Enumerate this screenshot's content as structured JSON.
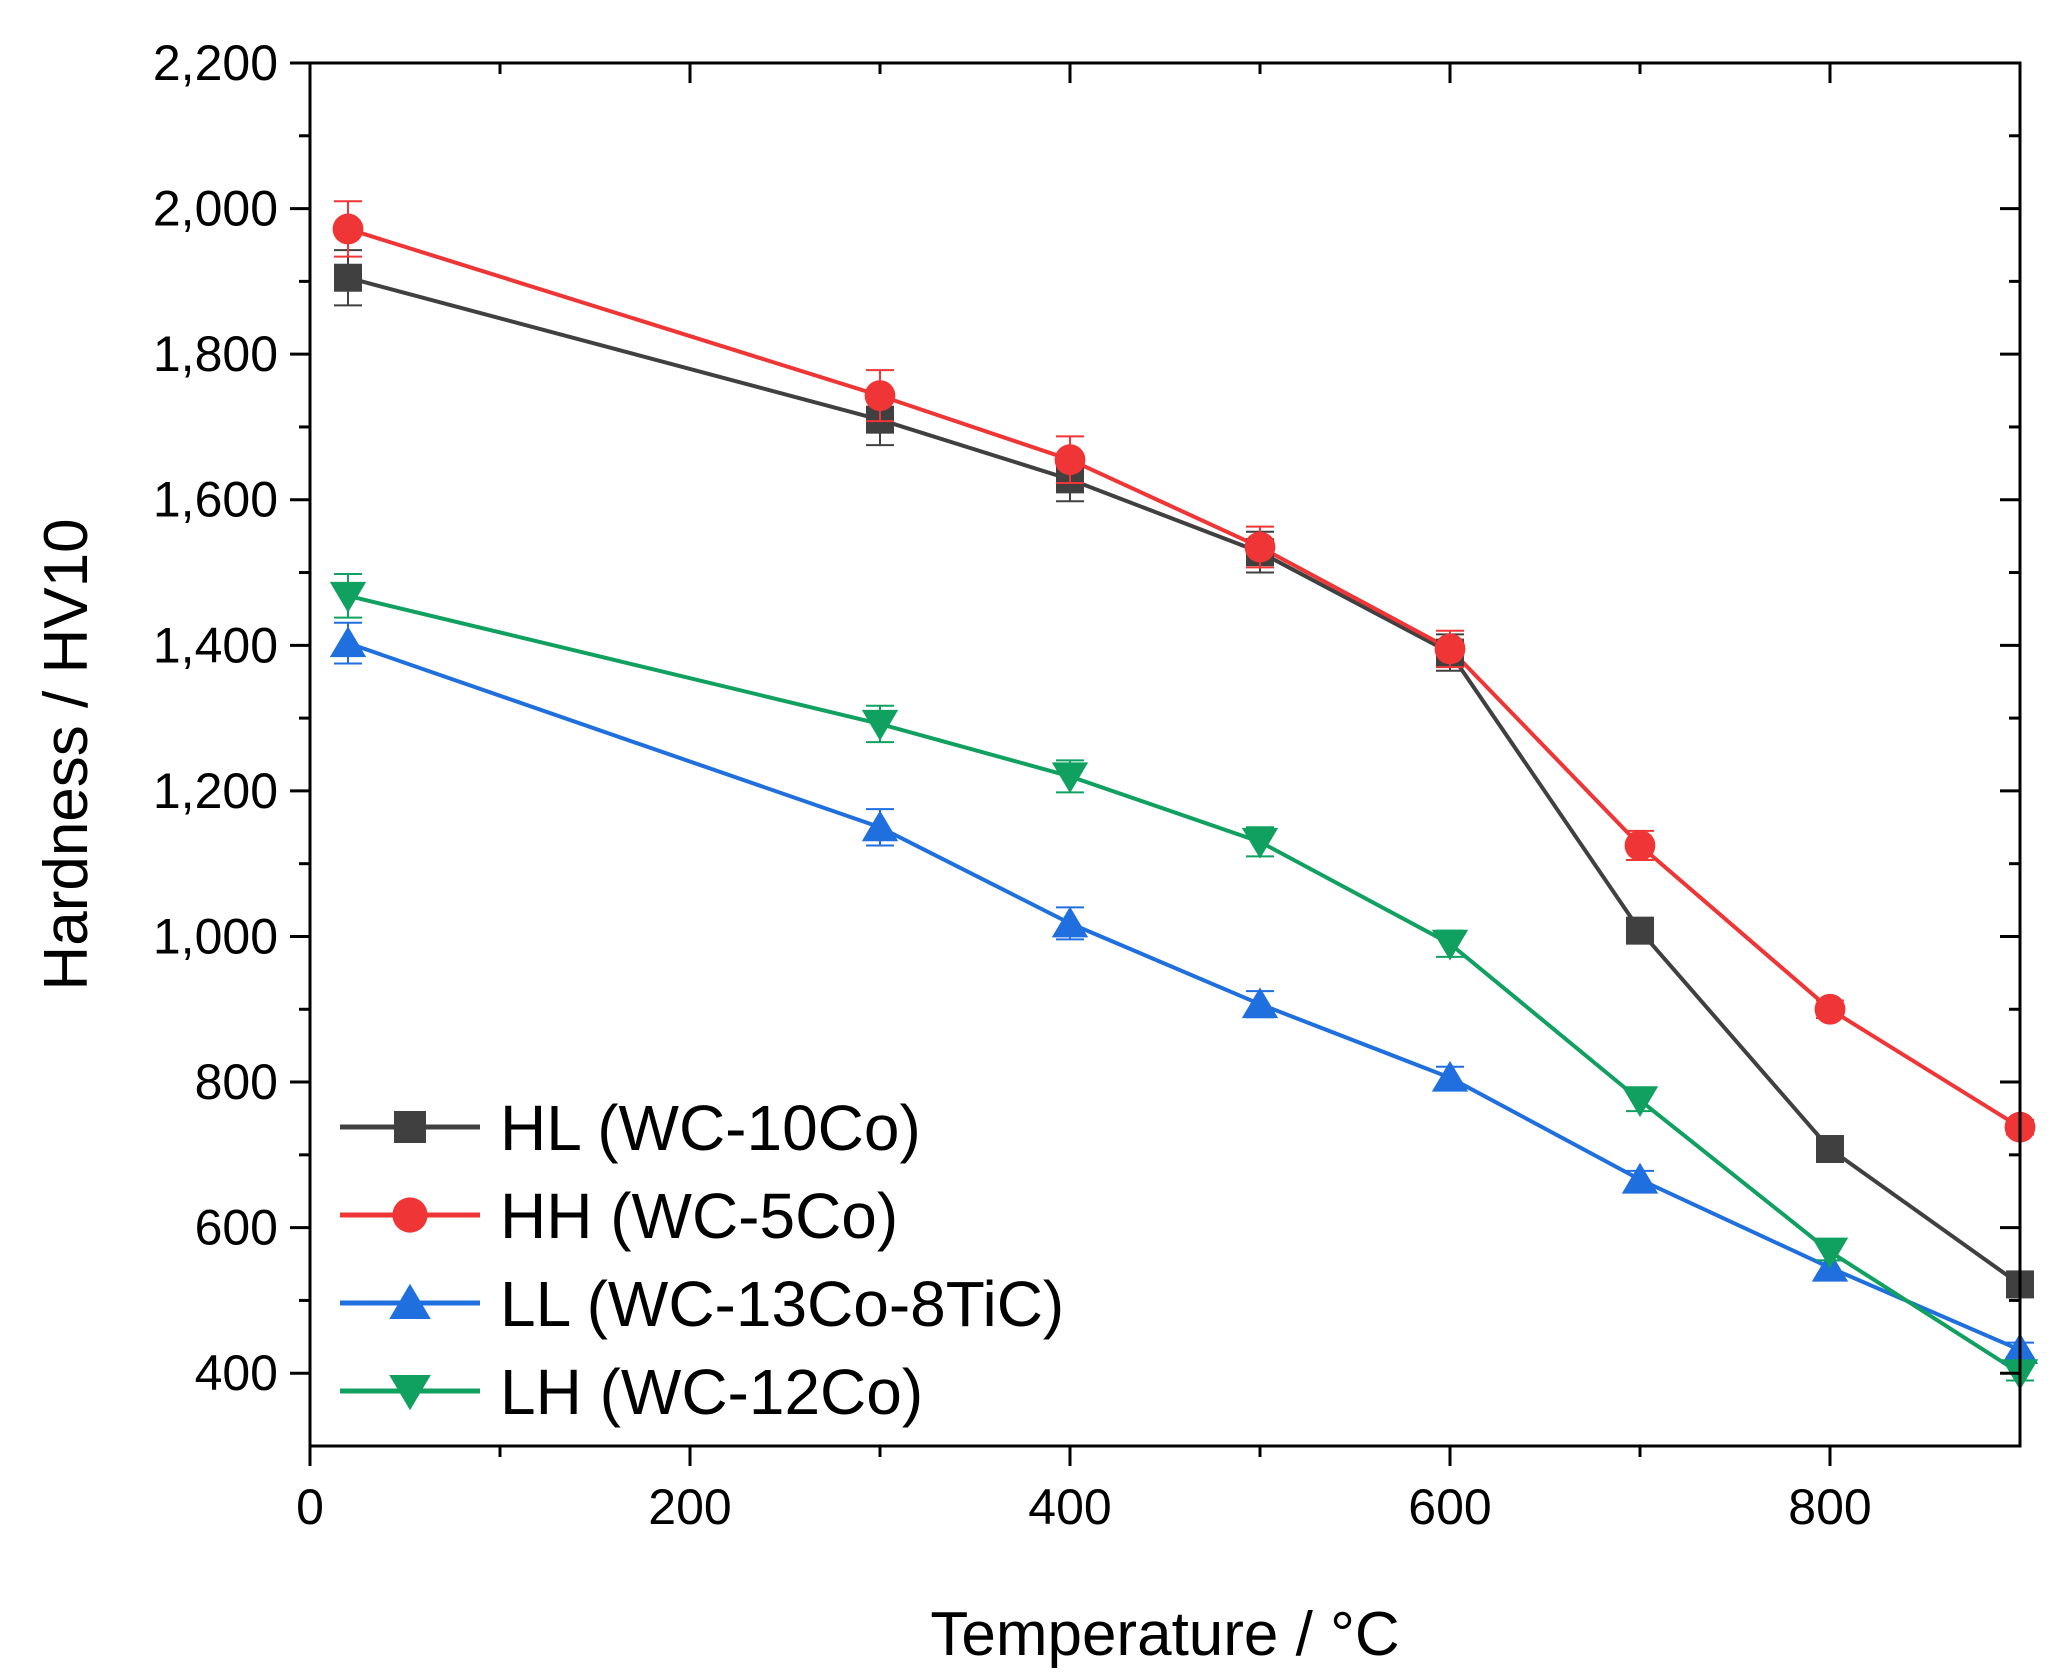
{
  "chart_data": {
    "type": "line",
    "title": "",
    "xlabel": "Temperature / °C",
    "ylabel": "Hardness / HV10",
    "xlim": [
      0,
      900
    ],
    "ylim": [
      300,
      2200
    ],
    "x_ticks": [
      0,
      200,
      400,
      600,
      800
    ],
    "x_tick_labels": [
      "0",
      "200",
      "400",
      "600",
      "800"
    ],
    "y_ticks": [
      400,
      600,
      800,
      1000,
      1200,
      1400,
      1600,
      1800,
      2000,
      2200
    ],
    "y_tick_labels": [
      "400",
      "600",
      "800",
      "1,000",
      "1,200",
      "1,400",
      "1,600",
      "1,800",
      "2,000",
      "2,200"
    ],
    "grid": false,
    "legend_position": "bottom-left",
    "x": [
      20,
      300,
      400,
      500,
      600,
      700,
      800,
      900
    ],
    "series": [
      {
        "name": "HL (WC-10Co)",
        "color": "#404040",
        "marker": "square",
        "values": [
          1905,
          1710,
          1628,
          1528,
          1390,
          1008,
          708,
          522
        ],
        "errors": [
          38,
          35,
          30,
          28,
          25,
          15,
          12,
          10
        ]
      },
      {
        "name": "HH (WC-5Co)",
        "color": "#ef3535",
        "marker": "circle",
        "values": [
          1972,
          1743,
          1655,
          1535,
          1395,
          1125,
          900,
          738
        ],
        "errors": [
          38,
          35,
          32,
          28,
          25,
          20,
          12,
          10
        ]
      },
      {
        "name": "LL (WC-13Co-8TiC)",
        "color": "#1f6fdf",
        "marker": "triangle-up",
        "values": [
          1403,
          1150,
          1018,
          907,
          806,
          666,
          545,
          432
        ],
        "errors": [
          28,
          25,
          22,
          18,
          15,
          12,
          10,
          10
        ]
      },
      {
        "name": "LH (WC-12Co)",
        "color": "#10a060",
        "marker": "triangle-down",
        "values": [
          1468,
          1292,
          1220,
          1130,
          990,
          775,
          567,
          400
        ],
        "errors": [
          30,
          25,
          22,
          20,
          18,
          15,
          12,
          10
        ]
      }
    ]
  }
}
